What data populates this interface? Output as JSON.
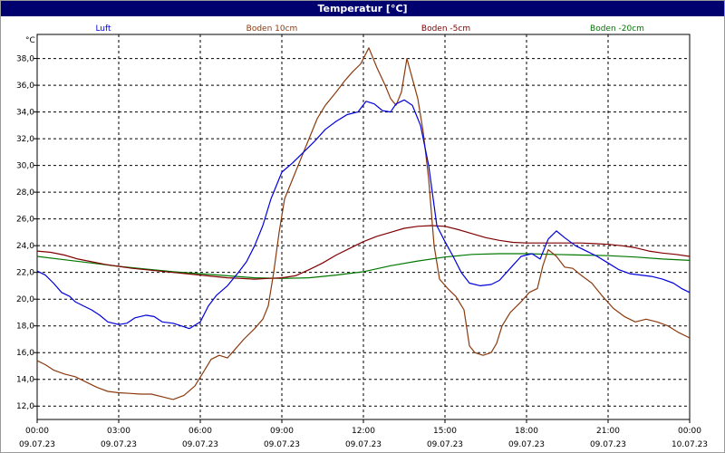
{
  "window": {
    "title": "Temperatur [°C]"
  },
  "chart_data": {
    "type": "line",
    "title": "Temperatur [°C]",
    "ylabel": "°C",
    "ylim": [
      11,
      39.8
    ],
    "xlim": [
      0,
      24
    ],
    "grid": true,
    "y_ticks": [
      "12,0",
      "14,0",
      "16,0",
      "18,0",
      "20,0",
      "22,0",
      "24,0",
      "26,0",
      "28,0",
      "30,0",
      "32,0",
      "34,0",
      "36,0",
      "38,0"
    ],
    "x_ticks": [
      {
        "time": "00:00",
        "date": "09.07.23"
      },
      {
        "time": "03:00",
        "date": "09.07.23"
      },
      {
        "time": "06:00",
        "date": "09.07.23"
      },
      {
        "time": "09:00",
        "date": "09.07.23"
      },
      {
        "time": "12:00",
        "date": "09.07.23"
      },
      {
        "time": "15:00",
        "date": "09.07.23"
      },
      {
        "time": "18:00",
        "date": "09.07.23"
      },
      {
        "time": "21:00",
        "date": "09.07.23"
      },
      {
        "time": "00:00",
        "date": "10.07.23"
      }
    ],
    "series": [
      {
        "name": "Luft",
        "color": "#0000dd",
        "points": [
          [
            0,
            22.1
          ],
          [
            0.3,
            21.8
          ],
          [
            0.6,
            21.2
          ],
          [
            0.9,
            20.5
          ],
          [
            1.2,
            20.2
          ],
          [
            1.4,
            19.8
          ],
          [
            1.7,
            19.5
          ],
          [
            2.0,
            19.2
          ],
          [
            2.3,
            18.8
          ],
          [
            2.6,
            18.3
          ],
          [
            3.0,
            18.1
          ],
          [
            3.3,
            18.2
          ],
          [
            3.6,
            18.6
          ],
          [
            4.0,
            18.8
          ],
          [
            4.3,
            18.7
          ],
          [
            4.6,
            18.3
          ],
          [
            5.0,
            18.2
          ],
          [
            5.3,
            18.0
          ],
          [
            5.6,
            17.8
          ],
          [
            6.0,
            18.3
          ],
          [
            6.3,
            19.5
          ],
          [
            6.6,
            20.3
          ],
          [
            7.0,
            21.0
          ],
          [
            7.4,
            22.0
          ],
          [
            7.7,
            22.8
          ],
          [
            8.0,
            24.0
          ],
          [
            8.3,
            25.5
          ],
          [
            8.6,
            27.5
          ],
          [
            9.0,
            29.5
          ],
          [
            9.4,
            30.2
          ],
          [
            9.8,
            31.0
          ],
          [
            10.2,
            31.8
          ],
          [
            10.6,
            32.7
          ],
          [
            11.0,
            33.3
          ],
          [
            11.4,
            33.8
          ],
          [
            11.8,
            34.0
          ],
          [
            12.1,
            34.8
          ],
          [
            12.4,
            34.6
          ],
          [
            12.7,
            34.1
          ],
          [
            13.0,
            34.0
          ],
          [
            13.2,
            34.6
          ],
          [
            13.5,
            34.9
          ],
          [
            13.8,
            34.5
          ],
          [
            14.1,
            33.0
          ],
          [
            14.4,
            30.0
          ],
          [
            14.7,
            25.5
          ],
          [
            15.0,
            24.3
          ],
          [
            15.3,
            23.2
          ],
          [
            15.6,
            22.0
          ],
          [
            15.9,
            21.2
          ],
          [
            16.3,
            21.0
          ],
          [
            16.7,
            21.1
          ],
          [
            17.0,
            21.4
          ],
          [
            17.4,
            22.3
          ],
          [
            17.8,
            23.2
          ],
          [
            18.2,
            23.4
          ],
          [
            18.5,
            23.0
          ],
          [
            18.8,
            24.5
          ],
          [
            19.1,
            25.1
          ],
          [
            19.4,
            24.6
          ],
          [
            19.8,
            24.0
          ],
          [
            20.2,
            23.6
          ],
          [
            20.6,
            23.2
          ],
          [
            21.0,
            22.7
          ],
          [
            21.4,
            22.2
          ],
          [
            21.8,
            21.9
          ],
          [
            22.2,
            21.8
          ],
          [
            22.6,
            21.7
          ],
          [
            23.0,
            21.5
          ],
          [
            23.4,
            21.2
          ],
          [
            23.7,
            20.8
          ],
          [
            24.0,
            20.5
          ]
        ]
      },
      {
        "name": "Boden 10cm",
        "color": "#8b3a0e",
        "points": [
          [
            0,
            15.4
          ],
          [
            0.3,
            15.1
          ],
          [
            0.6,
            14.7
          ],
          [
            1.0,
            14.4
          ],
          [
            1.4,
            14.2
          ],
          [
            1.8,
            13.8
          ],
          [
            2.2,
            13.4
          ],
          [
            2.6,
            13.1
          ],
          [
            3.0,
            13.0
          ],
          [
            3.4,
            12.95
          ],
          [
            3.8,
            12.9
          ],
          [
            4.2,
            12.9
          ],
          [
            4.6,
            12.7
          ],
          [
            5.0,
            12.5
          ],
          [
            5.4,
            12.8
          ],
          [
            5.8,
            13.5
          ],
          [
            6.1,
            14.5
          ],
          [
            6.4,
            15.5
          ],
          [
            6.7,
            15.8
          ],
          [
            7.0,
            15.6
          ],
          [
            7.3,
            16.3
          ],
          [
            7.6,
            17.0
          ],
          [
            8.0,
            17.8
          ],
          [
            8.3,
            18.5
          ],
          [
            8.5,
            19.5
          ],
          [
            8.7,
            22.0
          ],
          [
            8.9,
            25.0
          ],
          [
            9.1,
            27.5
          ],
          [
            9.4,
            29.0
          ],
          [
            9.7,
            30.5
          ],
          [
            10.0,
            32.0
          ],
          [
            10.3,
            33.5
          ],
          [
            10.6,
            34.5
          ],
          [
            11.0,
            35.5
          ],
          [
            11.3,
            36.3
          ],
          [
            11.6,
            37.0
          ],
          [
            11.9,
            37.6
          ],
          [
            12.2,
            38.8
          ],
          [
            12.5,
            37.3
          ],
          [
            12.8,
            36.0
          ],
          [
            13.0,
            35.0
          ],
          [
            13.2,
            34.5
          ],
          [
            13.4,
            35.5
          ],
          [
            13.6,
            38.0
          ],
          [
            13.8,
            36.5
          ],
          [
            14.0,
            35.0
          ],
          [
            14.2,
            32.5
          ],
          [
            14.4,
            29.0
          ],
          [
            14.6,
            24.0
          ],
          [
            14.8,
            21.5
          ],
          [
            15.1,
            20.8
          ],
          [
            15.4,
            20.2
          ],
          [
            15.7,
            19.2
          ],
          [
            15.9,
            16.5
          ],
          [
            16.1,
            16.0
          ],
          [
            16.4,
            15.8
          ],
          [
            16.7,
            16.0
          ],
          [
            16.9,
            16.7
          ],
          [
            17.1,
            18.0
          ],
          [
            17.4,
            19.0
          ],
          [
            17.8,
            19.8
          ],
          [
            18.1,
            20.5
          ],
          [
            18.4,
            20.8
          ],
          [
            18.6,
            22.5
          ],
          [
            18.8,
            23.7
          ],
          [
            19.1,
            23.2
          ],
          [
            19.4,
            22.4
          ],
          [
            19.7,
            22.3
          ],
          [
            20.0,
            21.8
          ],
          [
            20.4,
            21.2
          ],
          [
            20.8,
            20.2
          ],
          [
            21.2,
            19.3
          ],
          [
            21.6,
            18.7
          ],
          [
            22.0,
            18.3
          ],
          [
            22.4,
            18.5
          ],
          [
            22.8,
            18.3
          ],
          [
            23.2,
            18.0
          ],
          [
            23.6,
            17.5
          ],
          [
            24.0,
            17.1
          ]
        ]
      },
      {
        "name": "Boden -5cm",
        "color": "#800000",
        "points": [
          [
            0,
            23.6
          ],
          [
            0.5,
            23.5
          ],
          [
            1.0,
            23.3
          ],
          [
            1.5,
            23.0
          ],
          [
            2.0,
            22.8
          ],
          [
            2.5,
            22.6
          ],
          [
            3.0,
            22.45
          ],
          [
            3.5,
            22.3
          ],
          [
            4.0,
            22.2
          ],
          [
            4.5,
            22.1
          ],
          [
            5.0,
            22.0
          ],
          [
            5.5,
            21.9
          ],
          [
            6.0,
            21.8
          ],
          [
            6.5,
            21.7
          ],
          [
            7.0,
            21.6
          ],
          [
            7.5,
            21.55
          ],
          [
            8.0,
            21.5
          ],
          [
            8.5,
            21.55
          ],
          [
            9.0,
            21.6
          ],
          [
            9.5,
            21.75
          ],
          [
            10.0,
            22.2
          ],
          [
            10.5,
            22.7
          ],
          [
            11.0,
            23.3
          ],
          [
            11.5,
            23.8
          ],
          [
            12.0,
            24.3
          ],
          [
            12.5,
            24.7
          ],
          [
            13.0,
            25.0
          ],
          [
            13.5,
            25.3
          ],
          [
            14.0,
            25.45
          ],
          [
            14.5,
            25.5
          ],
          [
            15.0,
            25.45
          ],
          [
            15.5,
            25.2
          ],
          [
            16.0,
            24.9
          ],
          [
            16.5,
            24.6
          ],
          [
            17.0,
            24.4
          ],
          [
            17.5,
            24.25
          ],
          [
            18.0,
            24.2
          ],
          [
            18.5,
            24.2
          ],
          [
            19.0,
            24.2
          ],
          [
            19.5,
            24.2
          ],
          [
            20.0,
            24.2
          ],
          [
            20.5,
            24.15
          ],
          [
            21.0,
            24.1
          ],
          [
            21.5,
            24.0
          ],
          [
            22.0,
            23.85
          ],
          [
            22.5,
            23.6
          ],
          [
            23.0,
            23.45
          ],
          [
            23.5,
            23.35
          ],
          [
            24.0,
            23.2
          ]
        ]
      },
      {
        "name": "Boden -20cm",
        "color": "#007800",
        "points": [
          [
            0,
            23.2
          ],
          [
            1.0,
            22.95
          ],
          [
            2.0,
            22.7
          ],
          [
            3.0,
            22.45
          ],
          [
            4.0,
            22.25
          ],
          [
            5.0,
            22.05
          ],
          [
            6.0,
            21.9
          ],
          [
            7.0,
            21.75
          ],
          [
            8.0,
            21.6
          ],
          [
            9.0,
            21.55
          ],
          [
            10.0,
            21.6
          ],
          [
            11.0,
            21.8
          ],
          [
            12.0,
            22.05
          ],
          [
            13.0,
            22.5
          ],
          [
            14.0,
            22.85
          ],
          [
            15.0,
            23.15
          ],
          [
            16.0,
            23.35
          ],
          [
            17.0,
            23.4
          ],
          [
            18.0,
            23.4
          ],
          [
            19.0,
            23.35
          ],
          [
            20.0,
            23.3
          ],
          [
            21.0,
            23.25
          ],
          [
            22.0,
            23.15
          ],
          [
            23.0,
            23.0
          ],
          [
            24.0,
            22.9
          ]
        ]
      }
    ]
  }
}
